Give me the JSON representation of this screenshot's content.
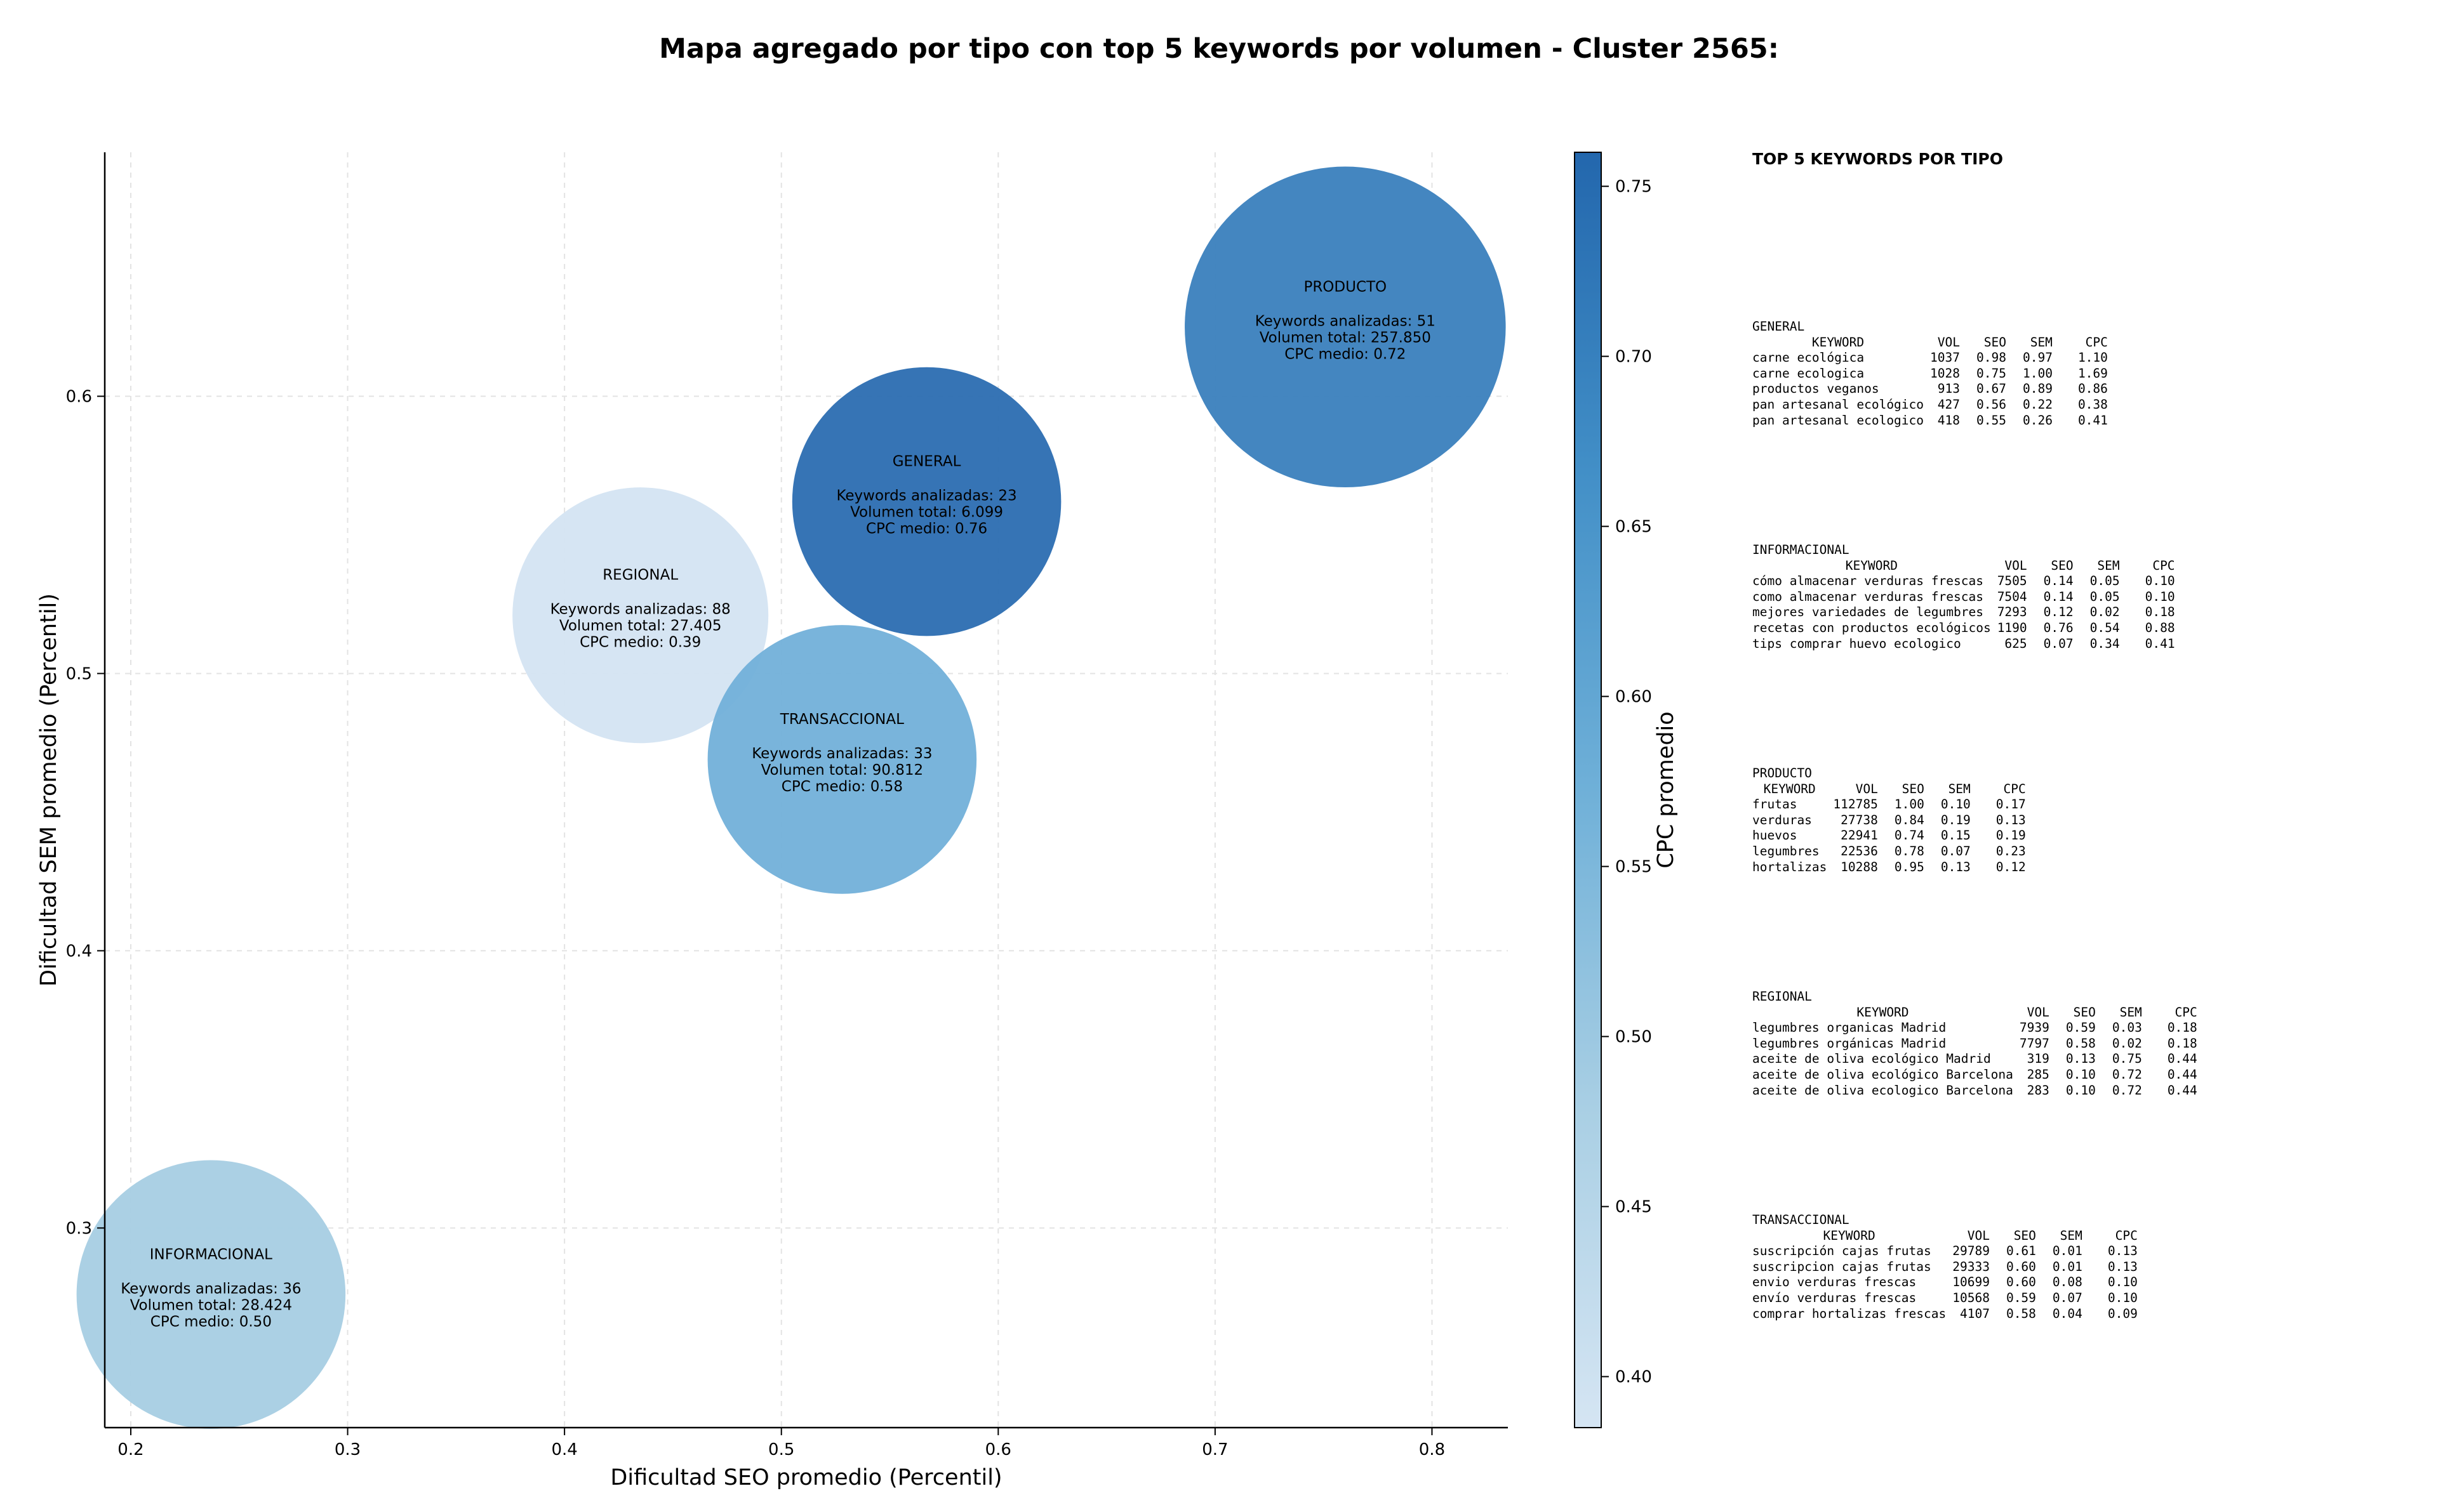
{
  "title": "Mapa agregado por tipo con top 5 keywords por volumen - Cluster 2565:",
  "chart_data": {
    "type": "scatter",
    "xlabel": "Dificultad SEO promedio (Percentil)",
    "ylabel": "Dificultad SEM promedio (Percentil)",
    "xlim": [
      0.188,
      0.835
    ],
    "ylim": [
      0.228,
      0.688
    ],
    "xticks": [
      0.2,
      0.3,
      0.4,
      0.5,
      0.6,
      0.7,
      0.8
    ],
    "yticks": [
      0.3,
      0.4,
      0.5,
      0.6
    ],
    "grid": true,
    "colorbar": {
      "label": "CPC promedio",
      "min": 0.385,
      "max": 0.76,
      "ticks": [
        0.4,
        0.45,
        0.5,
        0.55,
        0.6,
        0.65,
        0.7,
        0.75
      ],
      "colormap": [
        "#c6dbef",
        "#9ecae1",
        "#6baed6",
        "#4292c6",
        "#2171b5"
      ]
    },
    "points": [
      {
        "name": "PRODUCTO",
        "x": 0.76,
        "y": 0.625,
        "keywords": 51,
        "volume": "257.850",
        "cpc": 0.72,
        "color": "#3a80bd",
        "lines": [
          "Keywords analizadas: 51",
          "Volumen total: 257.850",
          "CPC medio: 0.72"
        ],
        "r": 0.074
      },
      {
        "name": "GENERAL",
        "x": 0.567,
        "y": 0.562,
        "keywords": 23,
        "volume": "6.099",
        "cpc": 0.76,
        "color": "#2b6db1",
        "lines": [
          "Keywords analizadas: 23",
          "Volumen total: 6.099",
          "CPC medio: 0.76"
        ],
        "r": 0.062
      },
      {
        "name": "REGIONAL",
        "x": 0.435,
        "y": 0.521,
        "keywords": 88,
        "volume": "27.405",
        "cpc": 0.39,
        "color": "#d4e4f2",
        "lines": [
          "Keywords analizadas: 88",
          "Volumen total: 27.405",
          "CPC medio: 0.39"
        ],
        "r": 0.059
      },
      {
        "name": "TRANSACCIONAL",
        "x": 0.528,
        "y": 0.469,
        "keywords": 33,
        "volume": "90.812",
        "cpc": 0.58,
        "color": "#72b0d9",
        "lines": [
          "Keywords analizadas: 33",
          "Volumen total: 90.812",
          "CPC medio: 0.58"
        ],
        "r": 0.062
      },
      {
        "name": "INFORMACIONAL",
        "x": 0.237,
        "y": 0.276,
        "keywords": 36,
        "volume": "28.424",
        "cpc": 0.5,
        "color": "#a6cde3",
        "lines": [
          "Keywords analizadas: 36",
          "Volumen total: 28.424",
          "CPC medio: 0.50"
        ],
        "r": 0.062
      }
    ]
  },
  "panel": {
    "title": "TOP 5 KEYWORDS POR TIPO",
    "header": {
      "keyword": "KEYWORD",
      "vol": "VOL",
      "seo": "SEO",
      "sem": "SEM",
      "cpc": "CPC"
    },
    "sections": [
      {
        "name": "GENERAL",
        "rows": [
          [
            "carne ecológica",
            "1037",
            "0.98",
            "0.97",
            "1.10"
          ],
          [
            "carne ecologica",
            "1028",
            "0.75",
            "1.00",
            "1.69"
          ],
          [
            "productos veganos",
            "913",
            "0.67",
            "0.89",
            "0.86"
          ],
          [
            "pan artesanal ecológico",
            "427",
            "0.56",
            "0.22",
            "0.38"
          ],
          [
            "pan artesanal ecologico",
            "418",
            "0.55",
            "0.26",
            "0.41"
          ]
        ]
      },
      {
        "name": "INFORMACIONAL",
        "rows": [
          [
            "cómo almacenar verduras frescas",
            "7505",
            "0.14",
            "0.05",
            "0.10"
          ],
          [
            "como almacenar verduras frescas",
            "7504",
            "0.14",
            "0.05",
            "0.10"
          ],
          [
            "mejores variedades de legumbres",
            "7293",
            "0.12",
            "0.02",
            "0.18"
          ],
          [
            "recetas con productos ecológicos",
            "1190",
            "0.76",
            "0.54",
            "0.88"
          ],
          [
            "tips comprar huevo ecologico",
            "625",
            "0.07",
            "0.34",
            "0.41"
          ]
        ]
      },
      {
        "name": "PRODUCTO",
        "rows": [
          [
            "frutas",
            "112785",
            "1.00",
            "0.10",
            "0.17"
          ],
          [
            "verduras",
            "27738",
            "0.84",
            "0.19",
            "0.13"
          ],
          [
            "huevos",
            "22941",
            "0.74",
            "0.15",
            "0.19"
          ],
          [
            "legumbres",
            "22536",
            "0.78",
            "0.07",
            "0.23"
          ],
          [
            "hortalizas",
            "10288",
            "0.95",
            "0.13",
            "0.12"
          ]
        ]
      },
      {
        "name": "REGIONAL",
        "rows": [
          [
            "legumbres organicas Madrid",
            "7939",
            "0.59",
            "0.03",
            "0.18"
          ],
          [
            "legumbres orgánicas Madrid",
            "7797",
            "0.58",
            "0.02",
            "0.18"
          ],
          [
            "aceite de oliva ecológico Madrid",
            "319",
            "0.13",
            "0.75",
            "0.44"
          ],
          [
            "aceite de oliva ecológico Barcelona",
            "285",
            "0.10",
            "0.72",
            "0.44"
          ],
          [
            "aceite de oliva ecologico Barcelona",
            "283",
            "0.10",
            "0.72",
            "0.44"
          ]
        ]
      },
      {
        "name": "TRANSACCIONAL",
        "rows": [
          [
            "suscripción cajas frutas",
            "29789",
            "0.61",
            "0.01",
            "0.13"
          ],
          [
            "suscripcion cajas frutas",
            "29333",
            "0.60",
            "0.01",
            "0.13"
          ],
          [
            "envio verduras frescas",
            "10699",
            "0.60",
            "0.08",
            "0.10"
          ],
          [
            "envío verduras frescas",
            "10568",
            "0.59",
            "0.07",
            "0.10"
          ],
          [
            "comprar hortalizas frescas",
            "4107",
            "0.58",
            "0.04",
            "0.09"
          ]
        ]
      }
    ]
  }
}
